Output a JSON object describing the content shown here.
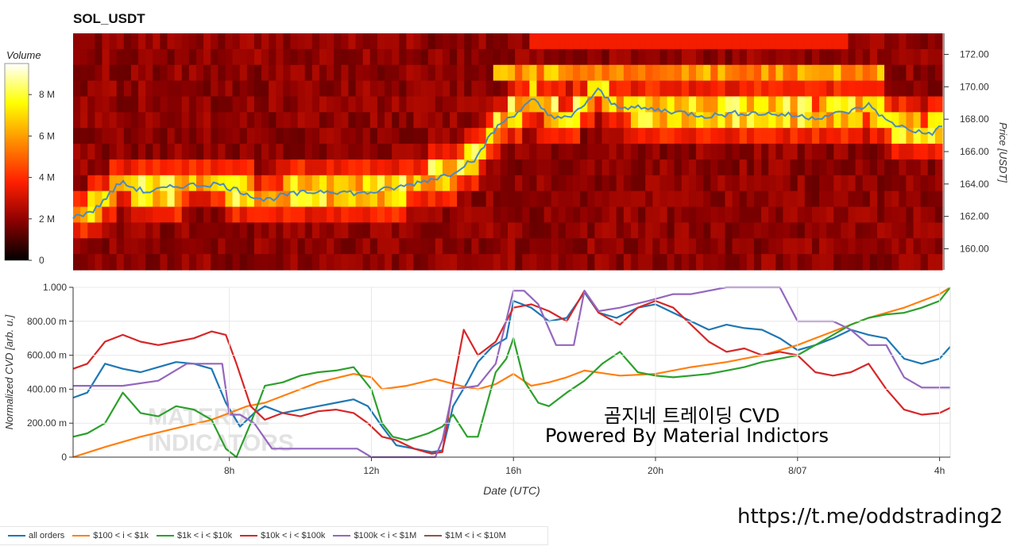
{
  "chart_data": [
    {
      "type": "heatmap",
      "title": "SOL_USDT",
      "colorbar": {
        "title": "Volume",
        "ticks": [
          "0",
          "2 M",
          "4 M",
          "6 M",
          "8 M"
        ],
        "colorscale": [
          "#000000",
          "#8b0000",
          "#ff2000",
          "#ff8c00",
          "#ffff00",
          "#ffffff"
        ],
        "range": [
          0,
          9500000
        ]
      },
      "xrange_hours": [
        3.5,
        27.5
      ],
      "y_axis": {
        "label": "Price [USDT]",
        "ticks": [
          "160.00",
          "162.00",
          "164.00",
          "166.00",
          "168.00",
          "170.00",
          "172.00"
        ],
        "range": [
          158.7,
          173.3
        ]
      },
      "price_line": {
        "color": "#4a8ac0",
        "x": [
          3.6,
          4.1,
          4.8,
          5.5,
          6.5,
          7.5,
          8.2,
          8.8,
          9.3,
          10.5,
          11.5,
          12.5,
          13.2,
          13.9,
          14.3,
          14.7,
          15.0,
          15.4,
          15.8,
          16.2,
          16.6,
          17.2,
          17.6,
          18.0,
          18.4,
          19.0,
          20.0,
          21.0,
          22.0,
          23.0,
          24.0,
          25.0,
          25.5,
          26.0,
          26.6,
          27.0,
          27.3,
          27.5
        ],
        "y": [
          162.0,
          162.4,
          164.1,
          163.5,
          163.9,
          164.0,
          163.5,
          163.0,
          163.3,
          163.6,
          163.4,
          163.8,
          164.2,
          164.6,
          165.2,
          165.7,
          167.0,
          167.9,
          168.5,
          169.2,
          168.3,
          168.0,
          168.9,
          169.8,
          168.9,
          168.7,
          168.5,
          168.2,
          168.4,
          168.3,
          168.1,
          168.5,
          168.9,
          167.8,
          167.4,
          167.1,
          167.2,
          167.6
        ]
      }
    },
    {
      "type": "line",
      "xlabel": "Date (UTC)",
      "ylabel": "Normalized CVD [arb. u.]",
      "x_ticks": [
        {
          "label": "8h",
          "hour": 8
        },
        {
          "label": "12h",
          "hour": 12
        },
        {
          "label": "16h",
          "hour": 16
        },
        {
          "label": "20h",
          "hour": 20
        },
        {
          "label": "8/07",
          "hour": 24
        },
        {
          "label": "4h",
          "hour": 28
        }
      ],
      "xlim_hours": [
        3.6,
        28.3
      ],
      "y_ticks": [
        "0",
        "200.00 m",
        "400.00 m",
        "600.00 m",
        "800.00 m",
        "1.000"
      ],
      "ylim": [
        0,
        1.0
      ],
      "series": [
        {
          "name": "all orders",
          "color": "#1f77b4",
          "x": [
            3.6,
            4.0,
            4.5,
            5.0,
            5.5,
            6.0,
            6.5,
            7.0,
            7.5,
            7.9,
            8.3,
            8.7,
            9.0,
            9.5,
            10.0,
            10.5,
            11.0,
            11.5,
            11.9,
            12.3,
            12.7,
            13.2,
            13.7,
            14.0,
            14.3,
            14.7,
            15.0,
            15.4,
            15.8,
            16.0,
            16.5,
            17.0,
            17.5,
            18.0,
            18.4,
            18.9,
            19.5,
            20.0,
            20.5,
            21.0,
            21.5,
            22.0,
            22.5,
            23.0,
            23.5,
            24.0,
            24.5,
            25.0,
            25.5,
            26.0,
            26.5,
            27.0,
            27.5,
            28.0,
            28.3
          ],
          "y": [
            0.35,
            0.38,
            0.55,
            0.52,
            0.5,
            0.53,
            0.56,
            0.55,
            0.52,
            0.32,
            0.18,
            0.26,
            0.3,
            0.26,
            0.28,
            0.3,
            0.32,
            0.34,
            0.3,
            0.18,
            0.07,
            0.05,
            0.03,
            0.04,
            0.3,
            0.44,
            0.56,
            0.65,
            0.7,
            0.92,
            0.88,
            0.8,
            0.82,
            0.97,
            0.85,
            0.82,
            0.88,
            0.9,
            0.85,
            0.8,
            0.75,
            0.78,
            0.76,
            0.75,
            0.7,
            0.63,
            0.66,
            0.7,
            0.75,
            0.72,
            0.7,
            0.58,
            0.55,
            0.58,
            0.65
          ]
        },
        {
          "name": "$100 < i < $1k",
          "color": "#ff7f0e",
          "x": [
            3.6,
            4.5,
            5.5,
            6.5,
            7.5,
            8.0,
            8.5,
            9.0,
            9.5,
            10.5,
            11.5,
            12.0,
            12.3,
            13.0,
            13.8,
            14.5,
            15.0,
            15.5,
            16.0,
            16.5,
            17.0,
            17.5,
            18.0,
            19.0,
            20.0,
            21.0,
            22.0,
            23.0,
            24.0,
            25.0,
            26.0,
            27.0,
            28.0,
            28.3
          ],
          "y": [
            0.0,
            0.06,
            0.12,
            0.17,
            0.22,
            0.26,
            0.3,
            0.32,
            0.36,
            0.44,
            0.49,
            0.47,
            0.4,
            0.42,
            0.46,
            0.42,
            0.4,
            0.43,
            0.49,
            0.42,
            0.44,
            0.47,
            0.51,
            0.48,
            0.49,
            0.53,
            0.56,
            0.6,
            0.66,
            0.74,
            0.82,
            0.88,
            0.96,
            1.0
          ]
        },
        {
          "name": "$1k < i < $10k",
          "color": "#2ca02c",
          "x": [
            3.6,
            4.0,
            4.5,
            5.0,
            5.5,
            6.0,
            6.5,
            7.0,
            7.5,
            7.9,
            8.2,
            8.6,
            9.0,
            9.5,
            10.0,
            10.5,
            11.0,
            11.5,
            12.0,
            12.3,
            12.6,
            13.0,
            13.3,
            13.6,
            14.0,
            14.3,
            14.7,
            15.0,
            15.5,
            15.8,
            16.0,
            16.3,
            16.7,
            17.0,
            17.5,
            18.0,
            18.5,
            19.0,
            19.5,
            20.0,
            20.5,
            21.0,
            21.5,
            22.0,
            22.5,
            23.0,
            23.5,
            24.0,
            24.5,
            25.0,
            25.5,
            26.0,
            26.5,
            27.0,
            27.5,
            28.0,
            28.3
          ],
          "y": [
            0.12,
            0.14,
            0.2,
            0.38,
            0.26,
            0.24,
            0.3,
            0.28,
            0.22,
            0.05,
            0.0,
            0.2,
            0.42,
            0.44,
            0.48,
            0.5,
            0.51,
            0.53,
            0.4,
            0.2,
            0.12,
            0.1,
            0.12,
            0.14,
            0.18,
            0.25,
            0.12,
            0.12,
            0.5,
            0.58,
            0.7,
            0.45,
            0.32,
            0.3,
            0.38,
            0.45,
            0.55,
            0.62,
            0.5,
            0.48,
            0.47,
            0.48,
            0.49,
            0.51,
            0.53,
            0.56,
            0.58,
            0.6,
            0.66,
            0.72,
            0.78,
            0.82,
            0.84,
            0.85,
            0.88,
            0.92,
            1.0
          ]
        },
        {
          "name": "$10k < i < $100k",
          "color": "#d62728",
          "x": [
            3.6,
            4.0,
            4.5,
            5.0,
            5.5,
            6.0,
            6.5,
            7.0,
            7.5,
            7.9,
            8.2,
            8.6,
            9.0,
            9.5,
            10.0,
            10.5,
            11.0,
            11.5,
            11.9,
            12.3,
            12.7,
            13.2,
            13.7,
            14.0,
            14.3,
            14.6,
            15.0,
            15.5,
            16.0,
            16.5,
            17.0,
            17.5,
            18.0,
            18.4,
            19.0,
            19.5,
            20.0,
            20.5,
            21.0,
            21.5,
            22.0,
            22.5,
            23.0,
            23.5,
            24.0,
            24.5,
            25.0,
            25.5,
            26.0,
            26.5,
            27.0,
            27.5,
            28.0,
            28.3
          ],
          "y": [
            0.52,
            0.55,
            0.68,
            0.72,
            0.68,
            0.66,
            0.68,
            0.7,
            0.74,
            0.72,
            0.55,
            0.3,
            0.22,
            0.26,
            0.24,
            0.27,
            0.28,
            0.26,
            0.2,
            0.12,
            0.1,
            0.05,
            0.02,
            0.03,
            0.42,
            0.75,
            0.6,
            0.68,
            0.88,
            0.9,
            0.86,
            0.8,
            0.98,
            0.85,
            0.78,
            0.88,
            0.92,
            0.88,
            0.78,
            0.68,
            0.62,
            0.64,
            0.6,
            0.62,
            0.6,
            0.5,
            0.48,
            0.5,
            0.55,
            0.4,
            0.28,
            0.25,
            0.26,
            0.29
          ]
        },
        {
          "name": "$100k < i < $1M",
          "color": "#9467bd",
          "x": [
            3.6,
            4.0,
            5.0,
            6.0,
            6.8,
            7.8,
            8.0,
            8.3,
            8.7,
            9.2,
            10.0,
            11.0,
            11.6,
            12.0,
            13.0,
            13.8,
            14.0,
            14.3,
            15.0,
            15.5,
            16.0,
            16.3,
            16.7,
            17.2,
            17.7,
            18.0,
            18.4,
            19.0,
            19.8,
            20.5,
            21.0,
            21.5,
            22.0,
            22.5,
            23.0,
            23.5,
            24.0,
            24.5,
            25.0,
            25.5,
            26.0,
            26.5,
            27.0,
            27.5,
            28.0,
            28.3
          ],
          "y": [
            0.42,
            0.42,
            0.42,
            0.45,
            0.55,
            0.55,
            0.25,
            0.25,
            0.2,
            0.05,
            0.05,
            0.05,
            0.05,
            0.0,
            0.0,
            0.0,
            0.1,
            0.4,
            0.42,
            0.55,
            0.98,
            0.98,
            0.9,
            0.66,
            0.66,
            0.98,
            0.86,
            0.88,
            0.92,
            0.96,
            0.96,
            0.98,
            1.0,
            1.0,
            1.0,
            1.0,
            0.8,
            0.8,
            0.8,
            0.75,
            0.66,
            0.66,
            0.47,
            0.41,
            0.41,
            0.41
          ]
        },
        {
          "name": "$1M < i < $10M",
          "color": "#8c564b",
          "x": [],
          "y": []
        }
      ]
    }
  ],
  "annotation": {
    "line1": "곰지네 트레이딩 CVD",
    "line2": "Powered By Material Indictors"
  },
  "watermark": "MATERIAL INDICATORS",
  "footer_url": "https://t.me/oddstrading2"
}
